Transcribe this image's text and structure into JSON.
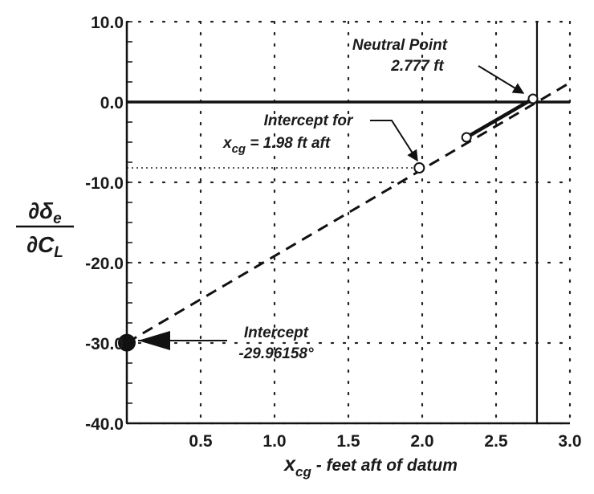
{
  "chart_data": {
    "type": "line",
    "title": "",
    "xlabel": "x_cg  - feet aft of datum",
    "ylabel": "∂δe / ∂CL",
    "xlim": [
      0,
      3.0
    ],
    "ylim": [
      -40,
      10
    ],
    "x_ticks": [
      "0.5",
      "1.0",
      "1.5",
      "2.0",
      "2.5",
      "3.0"
    ],
    "y_ticks": [
      "10.0",
      "0.0",
      "-10.0",
      "-20.0",
      "-30.0",
      "-40.0"
    ],
    "grid": "dotted",
    "series": [
      {
        "style": "dashed-extrapolation",
        "x": [
          0,
          3.0
        ],
        "y": [
          -29.96158,
          2.4
        ]
      },
      {
        "style": "solid-measured",
        "x": [
          2.3,
          2.75
        ],
        "y": [
          -4.4,
          0.4
        ],
        "points": [
          {
            "x": 2.3,
            "y": -4.4
          },
          {
            "x": 2.75,
            "y": 0.4
          }
        ]
      }
    ],
    "reference_lines": {
      "horizontal_y": 0,
      "vertical_x": 2.777,
      "dotted_horizontal_y": -8.2,
      "dotted_horizontal_x_range": [
        0,
        2.0
      ]
    },
    "markers": [
      {
        "x": 1.98,
        "y": -8.2,
        "shape": "open-circle"
      },
      {
        "x": 0,
        "y": -29.96158,
        "shape": "filled-circle"
      }
    ],
    "annotations": {
      "neutral_point": {
        "line1": "Neutral Point",
        "line2": "2.777 ft",
        "x": 2.777,
        "y": 0.4
      },
      "intercept_xcg": {
        "line1": "Intercept for",
        "line2_pre": "x",
        "line2_sub": "cg",
        "line2_post": " = 1.98 ft aft",
        "x": 1.98,
        "y": -8.2
      },
      "intercept_y": {
        "line1": "Intercept",
        "line2": "-29.96158°",
        "x": 0,
        "y": -29.96158
      }
    },
    "y_axis_title": {
      "num_pre": "∂δ",
      "num_sub": "e",
      "den_pre": "∂C",
      "den_sub": "L"
    },
    "x_axis_title": {
      "main": "x",
      "sub": "cg",
      "rest": "  - feet aft of datum"
    }
  }
}
